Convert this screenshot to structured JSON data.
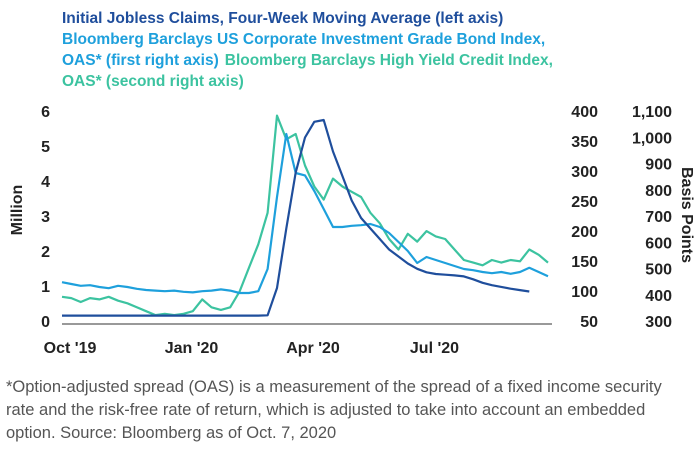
{
  "chart_data": {
    "type": "line",
    "ylabel": "Million",
    "y3label": "Basis Points",
    "footnote": "*Option-adjusted spread (OAS) is a measurement of the spread of a fixed income security rate and the risk-free rate of return, which is adjusted to take into account an embedded option. Source: Bloomberg as of Oct. 7, 2020",
    "categories": [
      "Oct '19",
      null,
      null,
      null,
      null,
      null,
      null,
      null,
      null,
      null,
      null,
      null,
      null,
      "Jan '20",
      null,
      null,
      null,
      null,
      null,
      null,
      null,
      null,
      null,
      null,
      null,
      null,
      "Apr '20",
      null,
      null,
      null,
      null,
      null,
      null,
      null,
      null,
      null,
      null,
      null,
      null,
      "Jul '20",
      null,
      null,
      null,
      null,
      null,
      null,
      null,
      null,
      null,
      null,
      null,
      null,
      null
    ],
    "ylim": [
      0,
      6
    ],
    "yticks": [
      0,
      1,
      2,
      3,
      4,
      5,
      6
    ],
    "y2lim": [
      50,
      400
    ],
    "y2ticks": [
      50,
      100,
      150,
      200,
      250,
      300,
      350,
      400
    ],
    "y3lim": [
      300,
      1100
    ],
    "y3ticks": [
      300,
      400,
      500,
      600,
      700,
      800,
      900,
      {
        "value": 1000,
        "label": "1,000"
      },
      {
        "value": 1100,
        "label": "1,100"
      }
    ],
    "series": [
      {
        "name": "Initial Jobless Claims, Four-Week Moving Average (left axis)",
        "color": "#1f4e9c",
        "values": [
          0.21,
          0.21,
          0.21,
          0.21,
          0.21,
          0.21,
          0.21,
          0.21,
          0.21,
          0.21,
          0.21,
          0.21,
          0.21,
          0.21,
          0.21,
          0.21,
          0.21,
          0.21,
          0.21,
          0.21,
          0.21,
          0.21,
          0.22,
          1.0,
          2.7,
          4.3,
          5.3,
          5.75,
          5.8,
          4.9,
          4.2,
          3.5,
          3.0,
          2.7,
          2.4,
          2.1,
          1.9,
          1.7,
          1.55,
          1.45,
          1.4,
          1.38,
          1.36,
          1.33,
          1.25,
          1.15,
          1.08,
          1.03,
          0.98,
          0.94,
          0.9,
          null,
          null
        ]
      },
      {
        "name": "Bloomberg Barclays US Corporate Investment Grade Bond Index, OAS* (first right axis)",
        "color": "#1ea0dc",
        "axis": "y2",
        "values": [
          118,
          115,
          112,
          113,
          110,
          108,
          112,
          110,
          107,
          105,
          104,
          103,
          104,
          102,
          101,
          103,
          104,
          106,
          104,
          100,
          100,
          103,
          140,
          260,
          365,
          300,
          296,
          270,
          240,
          210,
          210,
          212,
          213,
          215,
          210,
          200,
          185,
          170,
          150,
          160,
          155,
          150,
          145,
          140,
          138,
          135,
          133,
          135,
          132,
          135,
          142,
          135,
          128
        ]
      },
      {
        "name": "Bloomberg Barclays High Yield Credit Index, OAS* (second right axis)",
        "color": "#3cc3a0",
        "axis": "y3",
        "values": [
          400,
          395,
          380,
          395,
          390,
          400,
          385,
          375,
          360,
          345,
          330,
          335,
          330,
          335,
          345,
          390,
          360,
          350,
          360,
          420,
          510,
          600,
          720,
          1090,
          1000,
          1020,
          900,
          820,
          770,
          850,
          820,
          800,
          780,
          720,
          680,
          620,
          580,
          640,
          610,
          650,
          630,
          620,
          580,
          540,
          530,
          520,
          540,
          530,
          540,
          535,
          580,
          560,
          530
        ]
      }
    ]
  }
}
